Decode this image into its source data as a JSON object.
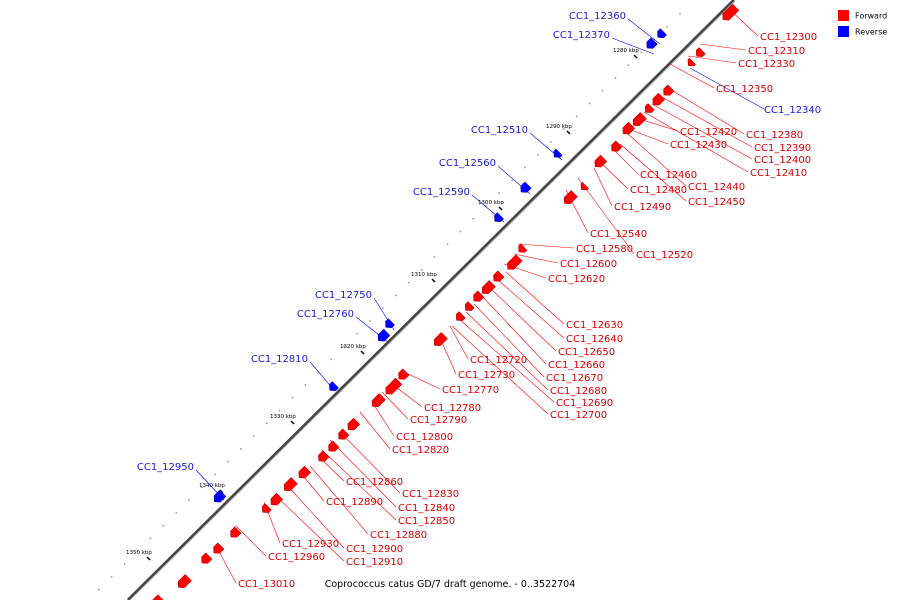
{
  "caption": "Coprococcus catus GD/7 draft genome. - 0..3522704",
  "legend": [
    {
      "label": "Forward",
      "color": "#ff0000"
    },
    {
      "label": "Reverse",
      "color": "#0000ff"
    }
  ],
  "colors": {
    "forward": "#ff0000",
    "reverse": "#0000ff",
    "forward_text": "#d40000",
    "reverse_text": "#1a1acd",
    "axis": "#777777"
  },
  "ticks": [
    "1280 kbp",
    "1290 kbp",
    "1300 kbp",
    "1310 kbp",
    "1320 kbp",
    "1330 kbp",
    "1340 kbp",
    "1350 kbp"
  ],
  "forward_genes": [
    "CC1_12300",
    "CC1_12310",
    "CC1_12330",
    "CC1_12350",
    "CC1_12380",
    "CC1_12390",
    "CC1_12400",
    "CC1_12410",
    "CC1_12420",
    "CC1_12430",
    "CC1_12440",
    "CC1_12450",
    "CC1_12460",
    "CC1_12480",
    "CC1_12490",
    "CC1_12520",
    "CC1_12540",
    "CC1_12580",
    "CC1_12600",
    "CC1_12620",
    "CC1_12630",
    "CC1_12640",
    "CC1_12650",
    "CC1_12660",
    "CC1_12670",
    "CC1_12680",
    "CC1_12690",
    "CC1_12700",
    "CC1_12720",
    "CC1_12730",
    "CC1_12770",
    "CC1_12780",
    "CC1_12790",
    "CC1_12800",
    "CC1_12820",
    "CC1_12830",
    "CC1_12840",
    "CC1_12850",
    "CC1_12860",
    "CC1_12880",
    "CC1_12890",
    "CC1_12900",
    "CC1_12910",
    "CC1_12930",
    "CC1_12960",
    "CC1_13010"
  ],
  "reverse_genes": [
    "CC1_12360",
    "CC1_12370",
    "CC1_12340",
    "CC1_12510",
    "CC1_12560",
    "CC1_12590",
    "CC1_12750",
    "CC1_12760",
    "CC1_12810",
    "CC1_12950"
  ]
}
